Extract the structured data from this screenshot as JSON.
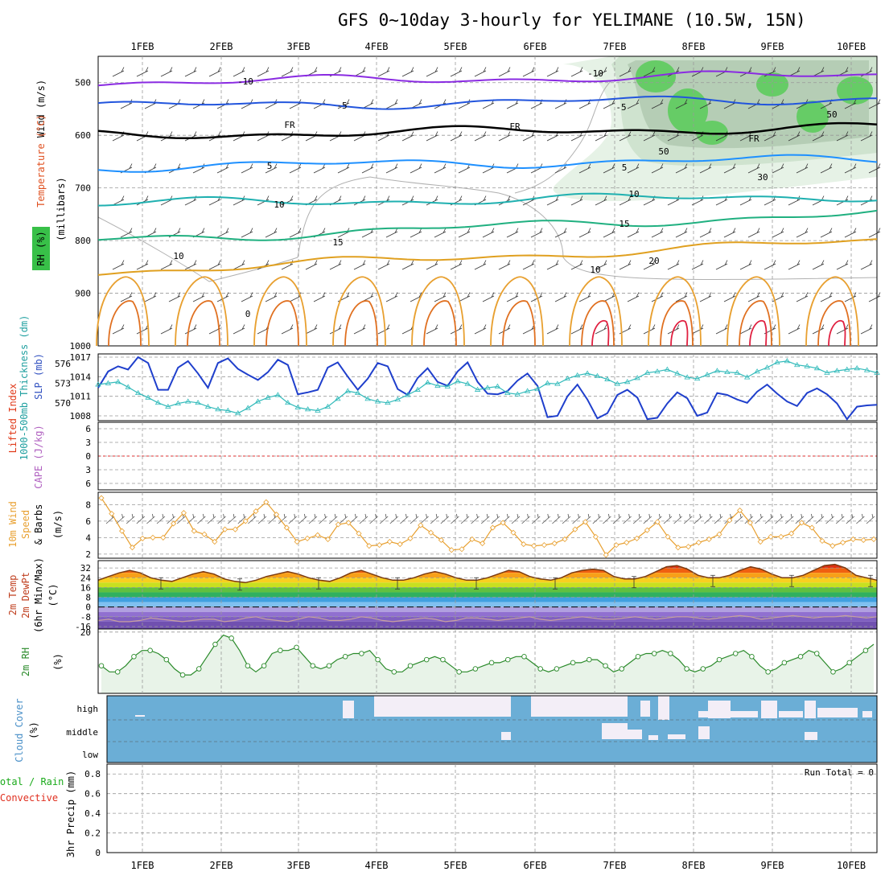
{
  "title": "GFS 0~10day 3-hourly for YELIMANE (10.5W, 15N)",
  "dates": [
    "1FEB",
    "2FEB",
    "3FEB",
    "4FEB",
    "5FEB",
    "6FEB",
    "7FEB",
    "8FEB",
    "9FEB",
    "10FEB"
  ],
  "colors": {
    "grid": "#999999",
    "rh_fill": "#cfe5cf",
    "cloud": "#6baed6",
    "slp": "#1f3fcc",
    "thickness": "#33bbbb",
    "wind": "#e8a030",
    "rh2m": "#2a8a2a"
  },
  "chart_data": [
    {
      "type": "heatmap",
      "panel": "upper_air",
      "ylabel_wind": "Wind (m/s)",
      "ylabel_temp": "Temperature (°C)",
      "ylabel_rh": "RH (%)",
      "ylabel_p": "(millibars)",
      "y_ticks": [
        500,
        600,
        700,
        800,
        900,
        1000
      ],
      "ylim": [
        450,
        1000
      ],
      "grid": true,
      "isotherms": [
        {
          "label": "-10",
          "color": "#8a2be2",
          "p": 500
        },
        {
          "label": "-5",
          "color": "#2255dd",
          "p": 545
        },
        {
          "label": "FR",
          "color": "#000000",
          "p": 600
        },
        {
          "label": "5",
          "color": "#1e90ff",
          "p": 660
        },
        {
          "label": "10",
          "color": "#1fb0b0",
          "p": 730
        },
        {
          "label": "15",
          "color": "#20b080",
          "p": 800
        },
        {
          "label": "20",
          "color": "#e0a020",
          "p": 860
        }
      ],
      "text_labels": [
        "-10",
        "-10",
        "-5",
        "-5",
        "FR",
        "FR",
        "FR",
        "5",
        "5",
        "10",
        "10",
        "15",
        "15",
        "20",
        "0",
        "10",
        "10",
        "30",
        "50",
        "50"
      ]
    },
    {
      "type": "line",
      "panel": "slp_thickness",
      "ylabel_left": "1000-500mb Thickness (dm)",
      "ylabel_right": "SLP (mb)",
      "left_ticks": [
        570,
        573,
        576
      ],
      "right_ticks": [
        1008,
        1011,
        1014,
        1017
      ],
      "grid": true,
      "series": [
        {
          "name": "SLP (mb)",
          "values": [
            1012.3,
            1014.8,
            1015.6,
            1015.1,
            1017,
            1016.1,
            1012,
            1012,
            1015.4,
            1016.4,
            1014.5,
            1012.3,
            1016.1,
            1016.8,
            1015.2,
            1014.3,
            1013.5,
            1014.7,
            1016.6,
            1015.8,
            1011.3,
            1011.6,
            1012,
            1015.4,
            1016.2,
            1014,
            1012,
            1013.7,
            1016.1,
            1015.6,
            1012.1,
            1011.2,
            1013.8,
            1015.3,
            1013.2,
            1012.6,
            1014.8,
            1016.2,
            1013.2,
            1011.4,
            1011.3,
            1011.8,
            1013.4,
            1014.5,
            1012.6,
            1007.8,
            1008,
            1011,
            1012.8,
            1010.5,
            1007.6,
            1008.4,
            1011.2,
            1012,
            1010.8,
            1007.5,
            1007.7,
            1009.9,
            1011.6,
            1010.7,
            1008,
            1008.5,
            1011.5,
            1011.2,
            1010.5,
            1010,
            1011.7,
            1012.8,
            1011.4,
            1010.2,
            1009.5,
            1011.5,
            1012.2,
            1011.3,
            1009.9,
            1007.5,
            1009.4,
            1009.6,
            1009.7
          ]
        },
        {
          "name": "1000-500mb Thickness (dm)",
          "values": [
            572.8,
            573,
            573.2,
            572.4,
            571.5,
            570.8,
            570,
            569.4,
            569.9,
            570.2,
            570,
            569.4,
            569,
            568.8,
            568.4,
            569.2,
            570.2,
            570.8,
            571.2,
            570,
            569.3,
            569,
            568.8,
            569.4,
            570.6,
            571.8,
            571.5,
            570.6,
            570.2,
            570,
            570.5,
            571.2,
            572,
            573.1,
            572.6,
            572.5,
            573.3,
            572.9,
            572,
            572.3,
            572.5,
            571.5,
            571.3,
            571.8,
            572.1,
            573,
            572.9,
            573.7,
            574.2,
            574.5,
            574.1,
            573.6,
            572.9,
            573.2,
            573.8,
            574.6,
            574.8,
            575.1,
            574.5,
            573.9,
            573.7,
            574.3,
            574.9,
            574.7,
            574.6,
            573.9,
            574.8,
            575.4,
            576.2,
            576.4,
            575.8,
            575.6,
            575.3,
            574.6,
            574.9,
            575.1,
            575.3,
            575,
            574.6
          ]
        }
      ]
    },
    {
      "type": "line",
      "panel": "lifted_index_cape",
      "ylabel_left": "Lifted Index",
      "ylabel_right": "CAPE (J/kg)",
      "y_ticks": [
        -6,
        -3,
        0,
        3,
        6
      ],
      "ylim": [
        6,
        -6
      ],
      "grid": true,
      "series": []
    },
    {
      "type": "line",
      "panel": "wind10m",
      "ylabel": "10m Wind Speed & Barbs (m/s)",
      "ylabel_parts": [
        "10m Wind",
        "Speed",
        "& Barbs",
        "(m/s)"
      ],
      "y_ticks": [
        2,
        4,
        6,
        8
      ],
      "ylim": [
        1.5,
        9.5
      ],
      "grid": true,
      "series": [
        {
          "name": "10m Wind Speed (m/s)",
          "values": [
            8.8,
            6.9,
            4.8,
            2.8,
            3.9,
            4,
            4,
            5.7,
            7,
            4.8,
            4.4,
            3.5,
            5,
            5,
            6,
            7.2,
            8.3,
            6.8,
            5.2,
            3.5,
            3.9,
            4.3,
            3.8,
            5.6,
            5.8,
            4.5,
            3,
            3.1,
            3.5,
            3.2,
            3.9,
            5.5,
            4.6,
            3.7,
            2.5,
            2.6,
            3.8,
            3.3,
            5.2,
            5.8,
            4.6,
            3.2,
            3,
            3.1,
            3.3,
            3.8,
            5,
            5.9,
            4.1,
            1.9,
            3.1,
            3.4,
            3.9,
            4.9,
            5.9,
            4.1,
            2.8,
            2.9,
            3.4,
            3.8,
            4.4,
            6.1,
            7.3,
            5.8,
            3.5,
            4.1,
            4.1,
            4.5,
            5.8,
            5.2,
            3.6,
            3,
            3.4,
            3.8,
            3.7,
            3.8
          ]
        }
      ]
    },
    {
      "type": "area",
      "panel": "temp2m",
      "ylabel_parts": [
        "2m Temp",
        "2m DewPt",
        "(6hr Min/Max)",
        "(°C)"
      ],
      "y_ticks": [
        -16,
        -8,
        0,
        8,
        16,
        24,
        32
      ],
      "ylim": [
        -18,
        38
      ],
      "grid": true,
      "series": [
        {
          "name": "2m Temp",
          "values": [
            22,
            25,
            28,
            30,
            28,
            24,
            22,
            21,
            24,
            27,
            29,
            27,
            23,
            21,
            20,
            22,
            25,
            27,
            29,
            27,
            24,
            22,
            21,
            24,
            28,
            30,
            27,
            24,
            22,
            22,
            24,
            27,
            29,
            27,
            24,
            22,
            22,
            24,
            27,
            30,
            29,
            25,
            23,
            22,
            24,
            28,
            30,
            31,
            30,
            25,
            23,
            23,
            25,
            29,
            33,
            34,
            31,
            26,
            24,
            24,
            26,
            30,
            33,
            31,
            27,
            24,
            24,
            26,
            30,
            34,
            35,
            32,
            26,
            24,
            22
          ]
        },
        {
          "name": "2m DewPt",
          "values": [
            -11,
            -10,
            -12,
            -12,
            -11,
            -9,
            -10,
            -11,
            -12,
            -11,
            -10,
            -10,
            -12,
            -11,
            -9,
            -8,
            -10,
            -11,
            -12,
            -10,
            -8,
            -9,
            -11,
            -11,
            -10,
            -8,
            -9,
            -11,
            -12,
            -11,
            -10,
            -9,
            -10,
            -12,
            -11,
            -9,
            -9,
            -10,
            -11,
            -10,
            -9,
            -8,
            -10,
            -11,
            -10,
            -9,
            -8,
            -9,
            -10,
            -10,
            -9,
            -8,
            -9,
            -10,
            -9,
            -8,
            -8,
            -9,
            -10,
            -9,
            -8,
            -7,
            -8,
            -10,
            -9,
            -8,
            -7,
            -8,
            -9,
            -8,
            -8,
            -7,
            -8,
            -9,
            -8
          ]
        }
      ]
    },
    {
      "type": "line",
      "panel": "rh2m",
      "ylabel_parts": [
        "2m RH",
        "(%)"
      ],
      "y_ticks": [
        20
      ],
      "ylim": [
        0,
        21
      ],
      "grid": true,
      "series": [
        {
          "name": "2m RH (%)",
          "values": [
            9,
            7,
            7,
            9,
            12,
            14,
            14,
            13,
            11,
            8,
            6,
            6,
            8,
            12,
            16,
            19,
            18,
            14,
            9,
            7,
            9,
            13,
            14,
            14,
            15,
            12,
            9,
            8,
            9,
            11,
            12,
            13,
            13,
            14,
            11,
            8,
            7,
            7,
            9,
            10,
            11,
            12,
            11,
            9,
            7,
            7,
            8,
            9,
            10,
            10,
            11,
            12,
            12,
            10,
            8,
            7,
            8,
            9,
            10,
            10,
            11,
            11,
            9,
            7,
            8,
            10,
            12,
            13,
            13,
            14,
            13,
            11,
            8,
            7,
            8,
            9,
            11,
            12,
            13,
            14,
            12,
            9,
            7,
            8,
            10,
            11,
            12,
            14,
            13,
            10,
            7,
            8,
            10,
            12,
            14,
            16
          ]
        }
      ]
    },
    {
      "type": "heatmap",
      "panel": "cloud_cover",
      "ylabel_parts": [
        "Cloud Cover",
        "(%)"
      ],
      "levels": [
        "high",
        "middle",
        "low"
      ],
      "grid": true
    },
    {
      "type": "bar",
      "panel": "precip",
      "ylabel_left_parts": [
        "Total / Rain",
        "Convective"
      ],
      "ylabel": "3hr Precip (mm)",
      "y_ticks": [
        0,
        0.2,
        0.4,
        0.6,
        0.8
      ],
      "ylim": [
        0,
        0.9
      ],
      "grid": true,
      "run_total": "Run Total = 0",
      "series": []
    }
  ]
}
